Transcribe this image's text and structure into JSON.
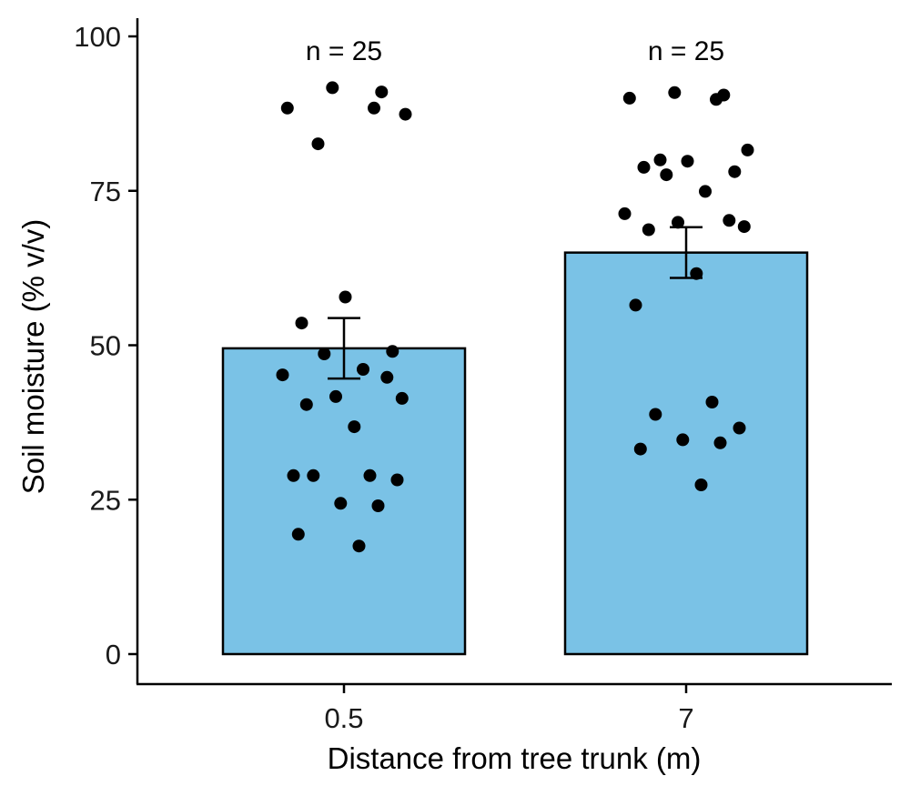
{
  "chart_data": {
    "type": "bar",
    "title": "",
    "xlabel": "Distance from tree trunk (m)",
    "ylabel": "Soil moisture (% v/v)",
    "ylim": [
      0,
      100
    ],
    "yticks": [
      0,
      25,
      50,
      75,
      100
    ],
    "categories": [
      "0.5",
      "7"
    ],
    "bar_color": "#7AC2E6",
    "grid": false,
    "legend": "none",
    "bars": [
      {
        "category": "0.5",
        "mean": 49.5,
        "error_low": 44.6,
        "error_high": 54.4,
        "n_label": "n = 25",
        "points": [
          {
            "x": "0.5",
            "y": 91.7
          },
          {
            "x": "0.5",
            "y": 91.0
          },
          {
            "x": "0.5",
            "y": 88.4
          },
          {
            "x": "0.5",
            "y": 88.4
          },
          {
            "x": "0.5",
            "y": 87.4
          },
          {
            "x": "0.5",
            "y": 82.6
          },
          {
            "x": "0.5",
            "y": 57.8
          },
          {
            "x": "0.5",
            "y": 53.6
          },
          {
            "x": "0.5",
            "y": 49.0
          },
          {
            "x": "0.5",
            "y": 48.6
          },
          {
            "x": "0.5",
            "y": 46.1
          },
          {
            "x": "0.5",
            "y": 45.2
          },
          {
            "x": "0.5",
            "y": 44.8
          },
          {
            "x": "0.5",
            "y": 41.7
          },
          {
            "x": "0.5",
            "y": 41.4
          },
          {
            "x": "0.5",
            "y": 40.4
          },
          {
            "x": "0.5",
            "y": 36.8
          },
          {
            "x": "0.5",
            "y": 28.9
          },
          {
            "x": "0.5",
            "y": 28.9
          },
          {
            "x": "0.5",
            "y": 28.9
          },
          {
            "x": "0.5",
            "y": 28.2
          },
          {
            "x": "0.5",
            "y": 24.4
          },
          {
            "x": "0.5",
            "y": 24.0
          },
          {
            "x": "0.5",
            "y": 19.4
          },
          {
            "x": "0.5",
            "y": 17.5
          }
        ]
      },
      {
        "category": "7",
        "mean": 65.0,
        "error_low": 60.9,
        "error_high": 69.1,
        "n_label": "n = 25",
        "points": [
          {
            "x": "7",
            "y": 90.9
          },
          {
            "x": "7",
            "y": 90.5
          },
          {
            "x": "7",
            "y": 90.0
          },
          {
            "x": "7",
            "y": 89.8
          },
          {
            "x": "7",
            "y": 81.6
          },
          {
            "x": "7",
            "y": 80.0
          },
          {
            "x": "7",
            "y": 79.8
          },
          {
            "x": "7",
            "y": 78.8
          },
          {
            "x": "7",
            "y": 78.1
          },
          {
            "x": "7",
            "y": 77.6
          },
          {
            "x": "7",
            "y": 74.9
          },
          {
            "x": "7",
            "y": 71.3
          },
          {
            "x": "7",
            "y": 70.2
          },
          {
            "x": "7",
            "y": 69.9
          },
          {
            "x": "7",
            "y": 69.2
          },
          {
            "x": "7",
            "y": 68.7
          },
          {
            "x": "7",
            "y": 61.6
          },
          {
            "x": "7",
            "y": 56.5
          },
          {
            "x": "7",
            "y": 40.8
          },
          {
            "x": "7",
            "y": 38.8
          },
          {
            "x": "7",
            "y": 36.6
          },
          {
            "x": "7",
            "y": 34.7
          },
          {
            "x": "7",
            "y": 34.2
          },
          {
            "x": "7",
            "y": 33.2
          },
          {
            "x": "7",
            "y": 27.4
          }
        ]
      }
    ]
  }
}
